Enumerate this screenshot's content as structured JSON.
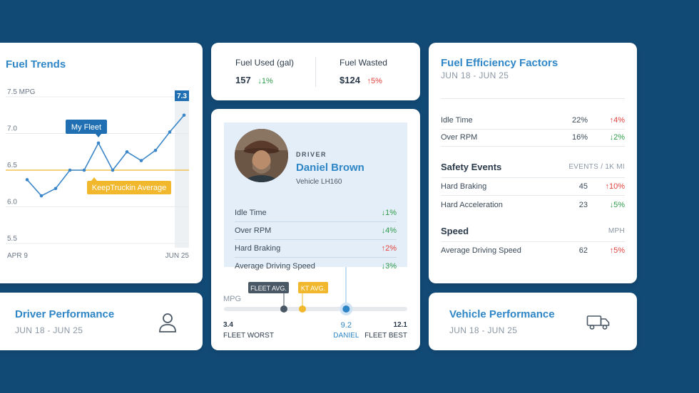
{
  "fuel_trends": {
    "title": "Fuel Trends",
    "y_ticks": [
      "7.5 MPG",
      "7.0",
      "6.5",
      "6.0",
      "5.5"
    ],
    "x_start": "APR 9",
    "x_end": "JUN 25",
    "fleet_label": "My Fleet",
    "average_label": "KeepTruckin Average",
    "last_value": "7.3",
    "colors": {
      "line": "#3a86c8",
      "average": "#f1b82d",
      "fleet_tag": "#1f6fb2"
    }
  },
  "chart_data": {
    "type": "line",
    "ylim": [
      5.5,
      7.5
    ],
    "series": [
      {
        "name": "My Fleet",
        "values": [
          6.37,
          6.15,
          6.25,
          6.5,
          6.5,
          6.87,
          6.5,
          6.75,
          6.63,
          6.77,
          7.02,
          7.25
        ]
      },
      {
        "name": "KeepTruckin Average",
        "values": [
          6.5,
          6.5,
          6.5,
          6.5,
          6.5,
          6.5,
          6.5,
          6.5,
          6.5,
          6.5,
          6.5,
          6.5
        ]
      }
    ],
    "grid": true
  },
  "fuel_used": {
    "label": "Fuel Used (gal)",
    "value": "157",
    "change": "1%",
    "direction": "down"
  },
  "fuel_wasted": {
    "label": "Fuel Wasted",
    "value": "$124",
    "change": "5%",
    "direction": "up"
  },
  "driver": {
    "role": "DRIVER",
    "name": "Daniel Brown",
    "vehicle": "Vehicle LH160",
    "metrics": [
      {
        "label": "Idle Time",
        "change": "1%",
        "direction": "down"
      },
      {
        "label": "Over RPM",
        "change": "4%",
        "direction": "down"
      },
      {
        "label": "Hard Braking",
        "change": "2%",
        "direction": "up"
      },
      {
        "label": "Average Driving Speed",
        "change": "3%",
        "direction": "down"
      }
    ],
    "mpg_scale": {
      "label": "MPG",
      "fleet_avg_tag": "FLEET AVG.",
      "kt_avg_tag": "KT AVG.",
      "worst_value": "3.4",
      "worst_label": "FLEET WORST",
      "driver_value": "9.2",
      "driver_label": "DANIEL",
      "best_value": "12.1",
      "best_label": "FLEET BEST"
    }
  },
  "efficiency": {
    "title": "Fuel Efficiency Factors",
    "date_range": "JUN 18 - JUN 25",
    "rows": [
      {
        "label": "Idle Time",
        "value": "22%",
        "change": "4%",
        "direction": "up"
      },
      {
        "label": "Over RPM",
        "value": "16%",
        "change": "2%",
        "direction": "down"
      }
    ],
    "safety": {
      "heading": "Safety Events",
      "unit": "EVENTS / 1K MI",
      "rows": [
        {
          "label": "Hard Braking",
          "value": "45",
          "change": "10%",
          "direction": "up"
        },
        {
          "label": "Hard Acceleration",
          "value": "23",
          "change": "5%",
          "direction": "down"
        }
      ]
    },
    "speed": {
      "heading": "Speed",
      "unit": "MPH",
      "rows": [
        {
          "label": "Average Driving Speed",
          "value": "62",
          "change": "5%",
          "direction": "up"
        }
      ]
    }
  },
  "driver_performance": {
    "title": "Driver Performance",
    "date_range": "JUN 18 - JUN 25",
    "icon": "user-icon"
  },
  "vehicle_performance": {
    "title": "Vehicle Performance",
    "date_range": "JUN 18 - JUN 25",
    "icon": "truck-icon"
  },
  "arrows": {
    "down": "↓",
    "up": "↑"
  }
}
